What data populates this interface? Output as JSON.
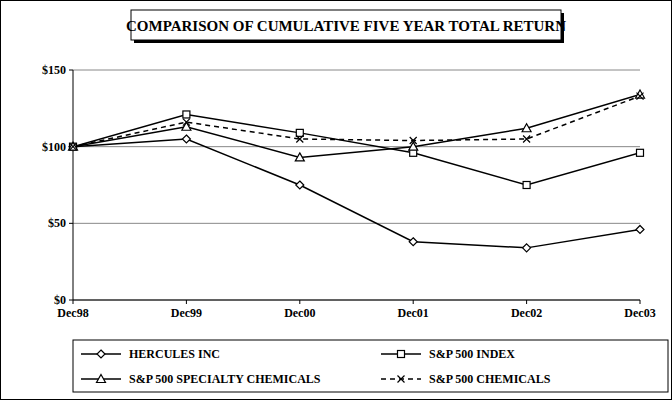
{
  "chart_data": {
    "type": "line",
    "title": "COMPARISON OF CUMULATIVE FIVE YEAR TOTAL RETURN",
    "categories": [
      "Dec98",
      "Dec99",
      "Dec00",
      "Dec01",
      "Dec02",
      "Dec03"
    ],
    "series": [
      {
        "name": "HERCULES INC",
        "color": "#000000",
        "marker": "diamond",
        "line_style": "solid",
        "values": [
          100,
          105,
          75,
          38,
          34,
          46
        ]
      },
      {
        "name": "S&P 500 INDEX",
        "color": "#000000",
        "marker": "square",
        "line_style": "solid",
        "values": [
          100,
          121,
          109,
          96,
          75,
          96
        ]
      },
      {
        "name": "S&P 500 SPECIALTY CHEMICALS",
        "color": "#000000",
        "marker": "triangle",
        "line_style": "solid",
        "values": [
          100,
          113,
          93,
          100,
          112,
          134
        ]
      },
      {
        "name": "S&P 500 CHEMICALS",
        "color": "#000000",
        "marker": "x",
        "line_style": "dashed",
        "values": [
          100,
          116,
          105,
          104,
          105,
          133
        ]
      }
    ],
    "ylim": [
      0,
      150
    ],
    "yticks": [
      {
        "value": 0,
        "label": "$0"
      },
      {
        "value": 50,
        "label": "$50"
      },
      {
        "value": 100,
        "label": "$100"
      },
      {
        "value": 150,
        "label": "$150"
      }
    ],
    "grid": true,
    "legend": "bottom"
  }
}
